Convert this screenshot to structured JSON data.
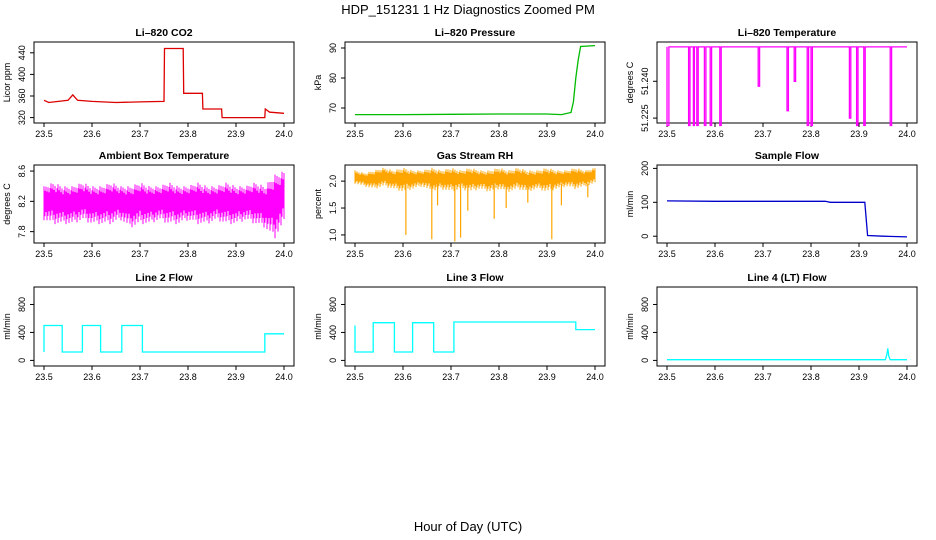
{
  "figure": {
    "title": "HDP_151231  1 Hz Diagnostics Zoomed PM",
    "xlabel": "Hour of Day (UTC)"
  },
  "chart_data": [
    {
      "type": "line",
      "title": "Li–820 CO2",
      "ylabel": "Licor ppm",
      "color": "#dd0000",
      "xlim": [
        23.5,
        24.0
      ],
      "xticks": [
        "23.5",
        "23.6",
        "23.7",
        "23.8",
        "23.9",
        "24.0"
      ],
      "ylim": [
        310,
        460
      ],
      "yticks": [
        {
          "v": 320,
          "label": "320"
        },
        {
          "v": 360,
          "label": "360"
        },
        {
          "v": 400,
          "label": "400"
        },
        {
          "v": 440,
          "label": "440"
        }
      ],
      "series": [
        {
          "x": [
            23.5,
            23.51,
            23.53,
            23.55,
            23.56,
            23.57,
            23.6,
            23.65,
            23.7,
            23.75,
            23.751,
            23.79,
            23.791,
            23.83,
            23.831,
            23.87,
            23.871,
            23.96,
            23.961,
            23.97,
            23.971,
            24.0
          ],
          "y": [
            352,
            348,
            350,
            352,
            362,
            352,
            350,
            348,
            349,
            350,
            448,
            448,
            365,
            365,
            336,
            336,
            320,
            320,
            336,
            330,
            330,
            328
          ]
        }
      ]
    },
    {
      "type": "line",
      "title": "Li–820 Pressure",
      "ylabel": "kPa",
      "color": "#00bb00",
      "xlim": [
        23.5,
        24.0
      ],
      "xticks": [
        "23.5",
        "23.6",
        "23.7",
        "23.8",
        "23.9",
        "24.0"
      ],
      "ylim": [
        65,
        92
      ],
      "yticks": [
        {
          "v": 70,
          "label": "70"
        },
        {
          "v": 80,
          "label": "80"
        },
        {
          "v": 90,
          "label": "90"
        }
      ],
      "series": [
        {
          "x": [
            23.5,
            23.6,
            23.7,
            23.8,
            23.9,
            23.93,
            23.95,
            23.955,
            23.96,
            23.965,
            23.97,
            24.0
          ],
          "y": [
            67.8,
            67.8,
            67.9,
            68.0,
            68.0,
            67.8,
            68.5,
            72,
            80,
            86,
            90.5,
            90.8
          ]
        }
      ]
    },
    {
      "type": "line",
      "title": "Li–820 Temperature",
      "ylabel": "degrees C",
      "color": "#ff00ff",
      "xlim": [
        23.5,
        24.0
      ],
      "xticks": [
        "23.5",
        "23.6",
        "23.7",
        "23.8",
        "23.9",
        "24.0"
      ],
      "ylim": [
        51.223,
        51.256
      ],
      "yticks": [
        {
          "v": 51.225,
          "label": "51.225"
        },
        {
          "v": 51.24,
          "label": "51.240"
        }
      ],
      "series": [
        {
          "x": [
            23.5,
            23.5,
            23.504,
            23.504,
            23.545,
            23.545,
            23.548,
            23.548,
            23.555,
            23.555,
            23.557,
            23.557,
            23.562,
            23.562,
            23.565,
            23.565,
            23.578,
            23.578,
            23.581,
            23.581,
            23.59,
            23.59,
            23.593,
            23.593,
            23.61,
            23.61,
            23.613,
            23.613,
            23.69,
            23.69,
            23.693,
            23.693,
            23.75,
            23.75,
            23.753,
            23.753,
            23.765,
            23.765,
            23.768,
            23.768,
            23.792,
            23.792,
            23.795,
            23.795,
            23.8,
            23.8,
            23.803,
            23.803,
            23.88,
            23.88,
            23.883,
            23.883,
            23.895,
            23.895,
            23.898,
            23.898,
            23.91,
            23.91,
            23.913,
            23.913,
            23.965,
            23.965,
            23.968,
            23.968,
            24.0
          ],
          "y": [
            51.254,
            51.222,
            51.222,
            51.254,
            51.254,
            51.222,
            51.222,
            51.254,
            51.254,
            51.222,
            51.222,
            51.254,
            51.254,
            51.222,
            51.222,
            51.254,
            51.254,
            51.222,
            51.222,
            51.254,
            51.254,
            51.222,
            51.222,
            51.254,
            51.254,
            51.222,
            51.222,
            51.254,
            51.254,
            51.238,
            51.238,
            51.254,
            51.254,
            51.228,
            51.228,
            51.254,
            51.254,
            51.24,
            51.24,
            51.254,
            51.254,
            51.222,
            51.222,
            51.254,
            51.254,
            51.222,
            51.222,
            51.254,
            51.254,
            51.225,
            51.225,
            51.254,
            51.254,
            51.222,
            51.222,
            51.254,
            51.254,
            51.222,
            51.222,
            51.254,
            51.254,
            51.222,
            51.222,
            51.254,
            51.254
          ]
        }
      ]
    },
    {
      "type": "line",
      "title": "Ambient Box Temperature",
      "ylabel": "degrees C",
      "color": "#ff00ff",
      "xlim": [
        23.5,
        24.0
      ],
      "xticks": [
        "23.5",
        "23.6",
        "23.7",
        "23.8",
        "23.9",
        "24.0"
      ],
      "ylim": [
        7.65,
        8.68
      ],
      "yticks": [
        {
          "v": 7.8,
          "label": "7.8"
        },
        {
          "v": 8.2,
          "label": "8.2"
        },
        {
          "v": 8.6,
          "label": "8.6"
        }
      ],
      "series": [
        {
          "x": [
            23.5,
            23.52,
            23.54,
            23.56,
            23.58,
            23.6,
            23.62,
            23.64,
            23.66,
            23.68,
            23.7,
            23.72,
            23.74,
            23.76,
            23.78,
            23.8,
            23.82,
            23.84,
            23.86,
            23.88,
            23.9,
            23.92,
            23.94,
            23.96,
            23.98,
            24.0
          ],
          "y_low": [
            7.95,
            7.9,
            7.9,
            7.9,
            7.95,
            7.9,
            7.9,
            7.9,
            7.95,
            7.85,
            7.9,
            7.9,
            7.95,
            7.9,
            7.9,
            7.95,
            7.9,
            7.9,
            7.95,
            7.9,
            7.9,
            7.95,
            7.9,
            7.85,
            7.7,
            7.9
          ],
          "y_high": [
            8.4,
            8.45,
            8.4,
            8.4,
            8.45,
            8.4,
            8.4,
            8.45,
            8.4,
            8.4,
            8.45,
            8.4,
            8.4,
            8.45,
            8.4,
            8.4,
            8.45,
            8.4,
            8.4,
            8.45,
            8.4,
            8.4,
            8.45,
            8.4,
            8.55,
            8.6
          ]
        }
      ]
    },
    {
      "type": "line",
      "title": "Gas Stream RH",
      "ylabel": "percent",
      "color": "#ffa500",
      "xlim": [
        23.5,
        24.0
      ],
      "xticks": [
        "23.5",
        "23.6",
        "23.7",
        "23.8",
        "23.9",
        "24.0"
      ],
      "ylim": [
        0.85,
        2.3
      ],
      "yticks": [
        {
          "v": 1.0,
          "label": "1.0"
        },
        {
          "v": 1.5,
          "label": "1.5"
        },
        {
          "v": 2.0,
          "label": "2.0"
        }
      ],
      "series": [
        {
          "x": [
            23.5,
            23.52,
            23.54,
            23.56,
            23.58,
            23.6,
            23.62,
            23.64,
            23.66,
            23.68,
            23.7,
            23.72,
            23.74,
            23.76,
            23.78,
            23.8,
            23.82,
            23.84,
            23.86,
            23.88,
            23.9,
            23.92,
            23.94,
            23.96,
            23.98,
            24.0
          ],
          "y_low": [
            1.95,
            1.9,
            1.85,
            1.9,
            1.85,
            1.8,
            1.85,
            1.9,
            1.8,
            1.85,
            1.8,
            1.85,
            1.8,
            1.85,
            1.8,
            1.85,
            1.8,
            1.85,
            1.8,
            1.85,
            1.8,
            1.85,
            1.9,
            1.85,
            1.9,
            1.95
          ],
          "y_high": [
            2.2,
            2.15,
            2.2,
            2.25,
            2.2,
            2.25,
            2.2,
            2.2,
            2.25,
            2.2,
            2.25,
            2.2,
            2.25,
            2.2,
            2.2,
            2.25,
            2.2,
            2.25,
            2.2,
            2.2,
            2.25,
            2.2,
            2.2,
            2.25,
            2.2,
            2.25
          ],
          "dips": [
            {
              "x": 23.606,
              "y": 1.0
            },
            {
              "x": 23.66,
              "y": 0.92
            },
            {
              "x": 23.672,
              "y": 1.55
            },
            {
              "x": 23.708,
              "y": 0.88
            },
            {
              "x": 23.72,
              "y": 0.95
            },
            {
              "x": 23.735,
              "y": 1.45
            },
            {
              "x": 23.79,
              "y": 1.3
            },
            {
              "x": 23.815,
              "y": 1.5
            },
            {
              "x": 23.86,
              "y": 1.6
            },
            {
              "x": 23.91,
              "y": 0.92
            },
            {
              "x": 23.93,
              "y": 1.55
            },
            {
              "x": 23.985,
              "y": 1.7
            }
          ]
        }
      ]
    },
    {
      "type": "line",
      "title": "Sample Flow",
      "ylabel": "ml/min",
      "color": "#0000cc",
      "xlim": [
        23.5,
        24.0
      ],
      "xticks": [
        "23.5",
        "23.6",
        "23.7",
        "23.8",
        "23.9",
        "24.0"
      ],
      "ylim": [
        -20,
        210
      ],
      "yticks": [
        {
          "v": 0,
          "label": "0"
        },
        {
          "v": 100,
          "label": "100"
        },
        {
          "v": 200,
          "label": "200"
        }
      ],
      "series": [
        {
          "x": [
            23.5,
            23.6,
            23.7,
            23.8,
            23.83,
            23.84,
            23.9,
            23.912,
            23.918,
            23.95,
            24.0
          ],
          "y": [
            104,
            103,
            103,
            103,
            103,
            100,
            100,
            100,
            2,
            0,
            -2
          ]
        }
      ]
    },
    {
      "type": "line",
      "title": "Line 2 Flow",
      "ylabel": "ml/min",
      "color": "#00ffff",
      "xlim": [
        23.5,
        24.0
      ],
      "xticks": [
        "23.5",
        "23.6",
        "23.7",
        "23.8",
        "23.9",
        "24.0"
      ],
      "ylim": [
        -80,
        1050
      ],
      "yticks": [
        {
          "v": 0,
          "label": "0"
        },
        {
          "v": 400,
          "label": "400"
        },
        {
          "v": 800,
          "label": "800"
        }
      ],
      "series": [
        {
          "x": [
            23.5,
            23.5,
            23.538,
            23.538,
            23.58,
            23.58,
            23.618,
            23.618,
            23.662,
            23.662,
            23.705,
            23.705,
            23.96,
            23.96,
            24.0
          ],
          "y": [
            120,
            500,
            500,
            120,
            120,
            500,
            500,
            120,
            120,
            500,
            500,
            120,
            120,
            380,
            380
          ]
        }
      ]
    },
    {
      "type": "line",
      "title": "Line 3 Flow",
      "ylabel": "ml/min",
      "color": "#00ffff",
      "xlim": [
        23.5,
        24.0
      ],
      "xticks": [
        "23.5",
        "23.6",
        "23.7",
        "23.8",
        "23.9",
        "24.0"
      ],
      "ylim": [
        -80,
        1050
      ],
      "yticks": [
        {
          "v": 0,
          "label": "0"
        },
        {
          "v": 400,
          "label": "400"
        },
        {
          "v": 800,
          "label": "800"
        }
      ],
      "series": [
        {
          "x": [
            23.5,
            23.5,
            23.503,
            23.503,
            23.538,
            23.538,
            23.582,
            23.582,
            23.62,
            23.62,
            23.664,
            23.664,
            23.706,
            23.706,
            23.96,
            23.96,
            24.0
          ],
          "y": [
            500,
            120,
            120,
            120,
            120,
            540,
            540,
            120,
            120,
            540,
            540,
            120,
            120,
            550,
            550,
            440,
            440
          ]
        }
      ]
    },
    {
      "type": "line",
      "title": "Line 4 (LT) Flow",
      "ylabel": "ml/min",
      "color": "#00ffff",
      "xlim": [
        23.5,
        24.0
      ],
      "xticks": [
        "23.5",
        "23.6",
        "23.7",
        "23.8",
        "23.9",
        "24.0"
      ],
      "ylim": [
        -80,
        1050
      ],
      "yticks": [
        {
          "v": 0,
          "label": "0"
        },
        {
          "v": 400,
          "label": "400"
        },
        {
          "v": 800,
          "label": "800"
        }
      ],
      "series": [
        {
          "x": [
            23.5,
            23.6,
            23.7,
            23.8,
            23.9,
            23.955,
            23.958,
            23.96,
            23.962,
            23.965,
            24.0
          ],
          "y": [
            10,
            10,
            10,
            10,
            10,
            10,
            80,
            170,
            60,
            10,
            10
          ]
        }
      ]
    }
  ]
}
